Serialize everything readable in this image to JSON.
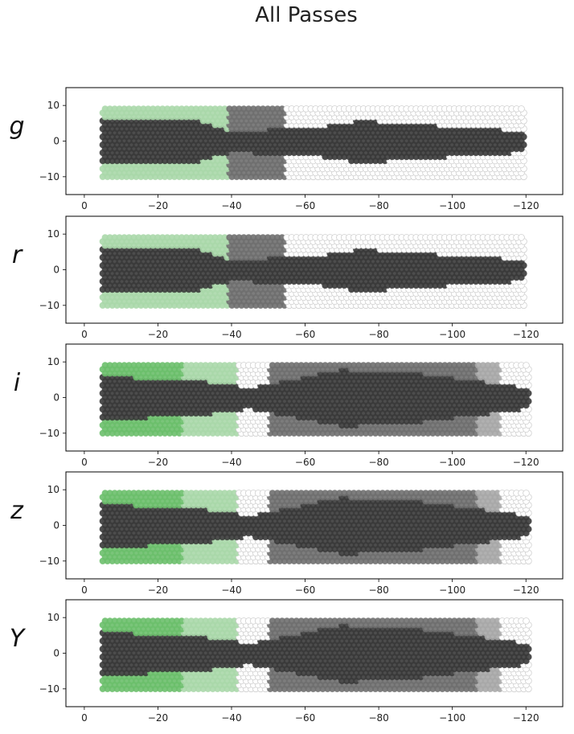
{
  "title": "All Passes",
  "chart_data": [
    {
      "type": "heatmap",
      "filter": "g",
      "xlim": [
        5,
        -130
      ],
      "ylim": [
        -15,
        15
      ],
      "xticks": [
        0,
        -20,
        -40,
        -60,
        -80,
        -100,
        -120
      ],
      "yticks": [
        10,
        0,
        -10
      ],
      "x_extent": [
        -5,
        -120
      ],
      "footprint": [
        {
          "x0": -5,
          "x1": -39,
          "half_height": 10,
          "shade": "green-light"
        },
        {
          "x0": -39,
          "x1": -55,
          "half_height": 10,
          "shade": "gray-mid"
        },
        {
          "x0": -55,
          "x1": -120,
          "half_height": 10,
          "shade": "empty"
        }
      ],
      "dense_band": [
        [
          -5,
          6
        ],
        [
          -30,
          6
        ],
        [
          -40,
          3
        ],
        [
          -62,
          4
        ],
        [
          -75,
          6
        ],
        [
          -90,
          5
        ],
        [
          -120,
          3
        ]
      ],
      "notes": "dark core strip of fully covered fields"
    },
    {
      "type": "heatmap",
      "filter": "r",
      "xlim": [
        5,
        -130
      ],
      "ylim": [
        -15,
        15
      ],
      "xticks": [
        0,
        -20,
        -40,
        -60,
        -80,
        -100,
        -120
      ],
      "yticks": [
        10,
        0,
        -10
      ],
      "x_extent": [
        -5,
        -120
      ],
      "footprint": [
        {
          "x0": -5,
          "x1": -39,
          "half_height": 10,
          "shade": "green-light"
        },
        {
          "x0": -39,
          "x1": -55,
          "half_height": 10,
          "shade": "gray-mid"
        },
        {
          "x0": -55,
          "x1": -120,
          "half_height": 10,
          "shade": "empty"
        }
      ],
      "dense_band": [
        [
          -5,
          6
        ],
        [
          -30,
          6
        ],
        [
          -40,
          3
        ],
        [
          -62,
          4
        ],
        [
          -75,
          6
        ],
        [
          -90,
          5
        ],
        [
          -120,
          3
        ]
      ]
    },
    {
      "type": "heatmap",
      "filter": "i",
      "xlim": [
        5,
        -130
      ],
      "ylim": [
        -15,
        15
      ],
      "xticks": [
        0,
        -20,
        -40,
        -60,
        -80,
        -100,
        -120
      ],
      "yticks": [
        10,
        0,
        -10
      ],
      "x_extent": [
        -5,
        -121
      ],
      "footprint": [
        {
          "x0": -5,
          "x1": -27,
          "half_height": 10,
          "shade": "green"
        },
        {
          "x0": -27,
          "x1": -42,
          "half_height": 10,
          "shade": "green-light"
        },
        {
          "x0": -42,
          "x1": -50,
          "half_height": 10,
          "shade": "empty"
        },
        {
          "x0": -50,
          "x1": -107,
          "half_height": 10,
          "shade": "gray-mid"
        },
        {
          "x0": -107,
          "x1": -113,
          "half_height": 10,
          "shade": "gray-light"
        },
        {
          "x0": -113,
          "x1": -121,
          "half_height": 10,
          "shade": "empty"
        }
      ],
      "dense_band": [
        [
          -5,
          6
        ],
        [
          -30,
          5
        ],
        [
          -45,
          3
        ],
        [
          -70,
          8
        ],
        [
          -90,
          7
        ],
        [
          -105,
          5
        ],
        [
          -121,
          3
        ]
      ]
    },
    {
      "type": "heatmap",
      "filter": "z",
      "xlim": [
        5,
        -130
      ],
      "ylim": [
        -15,
        15
      ],
      "xticks": [
        0,
        -20,
        -40,
        -60,
        -80,
        -100,
        -120
      ],
      "yticks": [
        10,
        0,
        -10
      ],
      "x_extent": [
        -5,
        -121
      ],
      "footprint": [
        {
          "x0": -5,
          "x1": -27,
          "half_height": 10,
          "shade": "green"
        },
        {
          "x0": -27,
          "x1": -42,
          "half_height": 10,
          "shade": "green-light"
        },
        {
          "x0": -42,
          "x1": -50,
          "half_height": 10,
          "shade": "empty"
        },
        {
          "x0": -50,
          "x1": -107,
          "half_height": 10,
          "shade": "gray-mid"
        },
        {
          "x0": -107,
          "x1": -113,
          "half_height": 10,
          "shade": "gray-light"
        },
        {
          "x0": -113,
          "x1": -121,
          "half_height": 10,
          "shade": "empty"
        }
      ],
      "dense_band": [
        [
          -5,
          6
        ],
        [
          -30,
          5
        ],
        [
          -45,
          3
        ],
        [
          -70,
          8
        ],
        [
          -90,
          7
        ],
        [
          -105,
          5
        ],
        [
          -121,
          3
        ]
      ]
    },
    {
      "type": "heatmap",
      "filter": "Y",
      "xlim": [
        5,
        -130
      ],
      "ylim": [
        -15,
        15
      ],
      "xticks": [
        0,
        -20,
        -40,
        -60,
        -80,
        -100,
        -120
      ],
      "yticks": [
        10,
        0,
        -10
      ],
      "x_extent": [
        -5,
        -121
      ],
      "footprint": [
        {
          "x0": -5,
          "x1": -27,
          "half_height": 10,
          "shade": "green"
        },
        {
          "x0": -27,
          "x1": -42,
          "half_height": 10,
          "shade": "green-light"
        },
        {
          "x0": -42,
          "x1": -50,
          "half_height": 10,
          "shade": "empty"
        },
        {
          "x0": -50,
          "x1": -107,
          "half_height": 10,
          "shade": "gray-mid"
        },
        {
          "x0": -107,
          "x1": -113,
          "half_height": 10,
          "shade": "gray-light"
        },
        {
          "x0": -113,
          "x1": -121,
          "half_height": 10,
          "shade": "empty"
        }
      ],
      "dense_band": [
        [
          -5,
          6
        ],
        [
          -30,
          5
        ],
        [
          -45,
          3
        ],
        [
          -70,
          8
        ],
        [
          -90,
          7
        ],
        [
          -105,
          5
        ],
        [
          -121,
          3
        ]
      ]
    }
  ],
  "colors": {
    "dark": "#3a3a3a",
    "gray-mid": "#6f6f6f",
    "gray-light": "#a8a8a8",
    "green": "#6cbf6c",
    "green-light": "#aad8aa",
    "empty": "#ffffff",
    "empty-stroke": "#d0d0d0"
  }
}
